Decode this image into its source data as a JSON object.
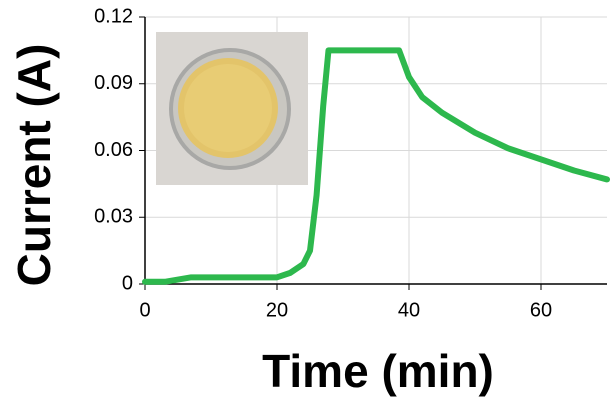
{
  "chart_data": {
    "type": "line",
    "x_label": "Time (min)",
    "y_label": "Current (A)",
    "x": [
      0,
      3,
      5,
      7,
      20,
      22,
      24,
      25,
      26,
      27,
      27.8,
      38.5,
      40,
      42,
      45,
      50,
      55,
      60,
      65,
      70
    ],
    "values": [
      0.001,
      0.001,
      0.002,
      0.003,
      0.003,
      0.005,
      0.009,
      0.015,
      0.04,
      0.08,
      0.105,
      0.105,
      0.093,
      0.084,
      0.077,
      0.068,
      0.061,
      0.056,
      0.051,
      0.047
    ],
    "color": "#2db84d",
    "xlim": [
      0,
      70
    ],
    "ylim": [
      0,
      0.12
    ],
    "xticks": [
      0,
      20,
      40,
      60
    ],
    "yticks": [
      0,
      0.03,
      0.06,
      0.09,
      0.12
    ],
    "grid": true
  }
}
